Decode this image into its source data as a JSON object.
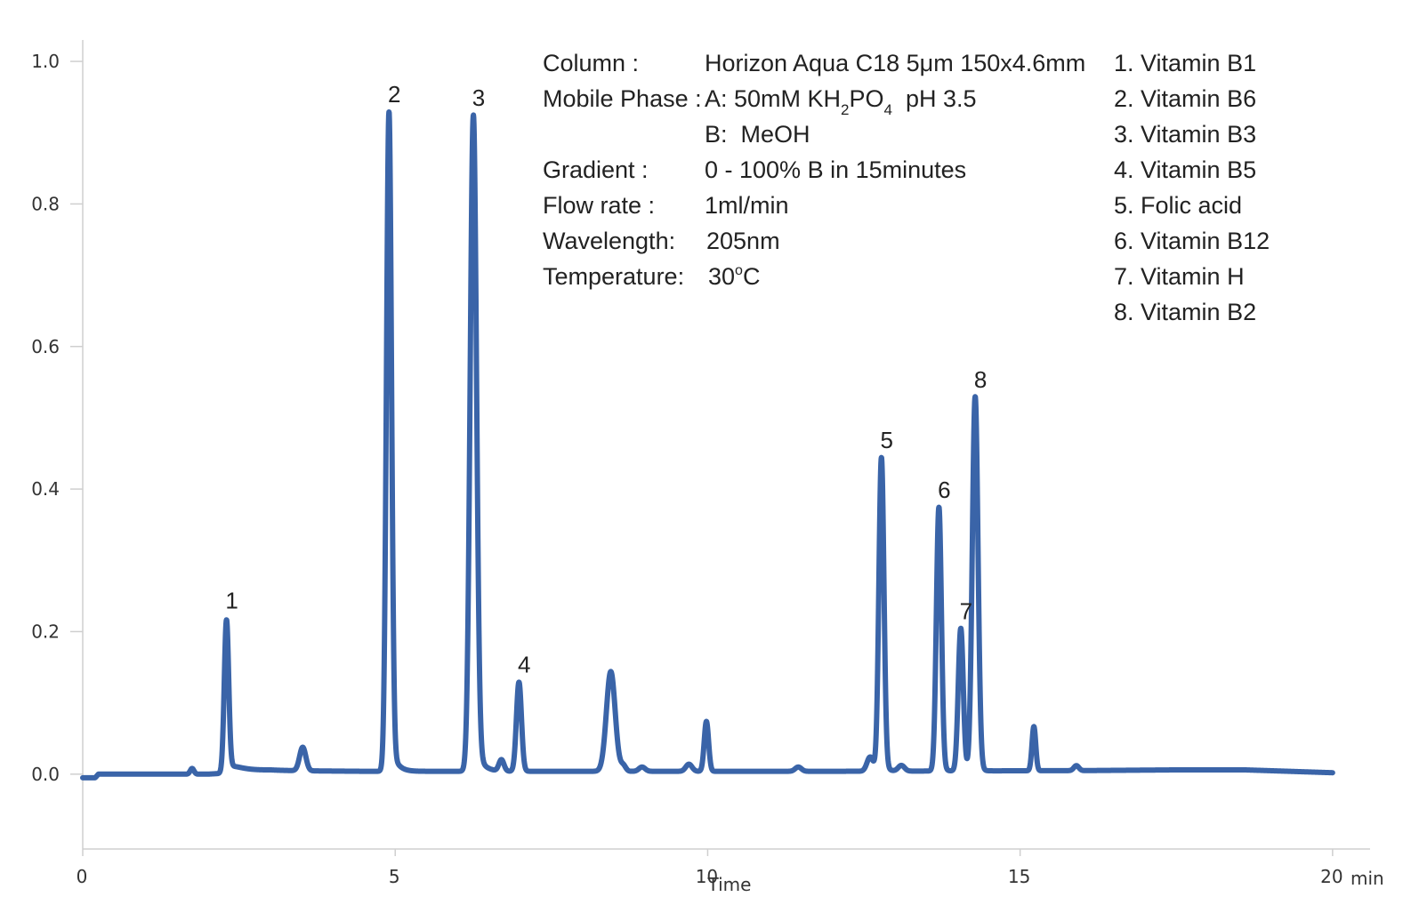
{
  "chart_data": {
    "type": "line",
    "title": "",
    "xlabel": "Time",
    "x_unit": "min",
    "ylabel": "",
    "xlim": [
      0,
      20.6
    ],
    "ylim": [
      -0.105,
      1.03
    ],
    "x_ticks": [
      {
        "value": 0,
        "label": "0"
      },
      {
        "value": 5,
        "label": "5"
      },
      {
        "value": 10,
        "label": "10"
      },
      {
        "value": 15,
        "label": "15"
      },
      {
        "value": 20,
        "label": "20"
      }
    ],
    "y_ticks": [
      {
        "value": 0.0,
        "label": "0.0"
      },
      {
        "value": 0.2,
        "label": "0.2"
      },
      {
        "value": 0.4,
        "label": "0.4"
      },
      {
        "value": 0.6,
        "label": "0.6"
      },
      {
        "value": 0.8,
        "label": "0.8"
      },
      {
        "value": 1.0,
        "label": "1.0"
      }
    ],
    "grid": false,
    "color": "#3a64a8",
    "baseline": [
      [
        0.0,
        -0.005
      ],
      [
        0.2,
        -0.005
      ],
      [
        0.25,
        0.0
      ],
      [
        2.0,
        0.0
      ],
      [
        3.0,
        0.005
      ],
      [
        4.5,
        0.004
      ],
      [
        8.0,
        0.004
      ],
      [
        12.0,
        0.004
      ],
      [
        16.0,
        0.005
      ],
      [
        17.5,
        0.006
      ],
      [
        18.6,
        0.006
      ],
      [
        20.0,
        0.002
      ]
    ],
    "peaks": [
      {
        "label": "1",
        "t": 2.3,
        "h": 0.215,
        "w": 0.035,
        "tail": 0.25
      },
      {
        "label": "2",
        "t": 4.9,
        "h": 0.925,
        "w": 0.04,
        "tail": 0.08
      },
      {
        "label": "3",
        "t": 6.25,
        "h": 0.92,
        "w": 0.05,
        "tail": 0.09
      },
      {
        "label": "4",
        "t": 6.98,
        "h": 0.125,
        "w": 0.04,
        "tail": 0.03
      },
      {
        "label": "5",
        "t": 12.78,
        "h": 0.44,
        "w": 0.04,
        "tail": 0.05
      },
      {
        "label": "6",
        "t": 13.7,
        "h": 0.37,
        "w": 0.04,
        "tail": 0.04
      },
      {
        "label": "7",
        "t": 14.05,
        "h": 0.2,
        "w": 0.04,
        "tail": 0.03
      },
      {
        "label": "8",
        "t": 14.28,
        "h": 0.525,
        "w": 0.045,
        "tail": 0.04
      }
    ],
    "minor_peaks": [
      {
        "t": 1.75,
        "h": 0.008,
        "w": 0.03
      },
      {
        "t": 3.52,
        "h": 0.033,
        "w": 0.05
      },
      {
        "t": 6.7,
        "h": 0.016,
        "w": 0.04
      },
      {
        "t": 8.45,
        "h": 0.14,
        "w": 0.07
      },
      {
        "t": 8.65,
        "h": 0.008,
        "w": 0.04
      },
      {
        "t": 8.95,
        "h": 0.006,
        "w": 0.05
      },
      {
        "t": 9.7,
        "h": 0.01,
        "w": 0.05
      },
      {
        "t": 9.98,
        "h": 0.07,
        "w": 0.035
      },
      {
        "t": 11.45,
        "h": 0.006,
        "w": 0.05
      },
      {
        "t": 12.6,
        "h": 0.02,
        "w": 0.05
      },
      {
        "t": 13.1,
        "h": 0.008,
        "w": 0.05
      },
      {
        "t": 15.22,
        "h": 0.062,
        "w": 0.03
      },
      {
        "t": 15.9,
        "h": 0.007,
        "w": 0.04
      }
    ]
  },
  "conditions": [
    {
      "key": "Column :",
      "value": "Horizon Aqua C18 5μm 150x4.6mm"
    },
    {
      "key": "Mobile Phase :",
      "value_parts": [
        "A: 50mM KH",
        "2",
        "PO",
        "4",
        "  pH 3.5"
      ]
    },
    {
      "key": "",
      "value": "B:  MeOH"
    },
    {
      "key": "Gradient :",
      "value": "0 - 100% B in 15minutes"
    },
    {
      "key": "Flow rate :",
      "value": "1ml/min"
    },
    {
      "key": "Wavelength:",
      "value": "205nm"
    },
    {
      "key": "Temperature:",
      "value_parts": [
        "30",
        "o",
        "C"
      ]
    }
  ],
  "legend": [
    "1. Vitamin B1",
    "2. Vitamin B6",
    "3. Vitamin B3",
    "4. Vitamin B5",
    "5. Folic acid",
    "6. Vitamin B12",
    "7. Vitamin H",
    "8. Vitamin B2"
  ]
}
